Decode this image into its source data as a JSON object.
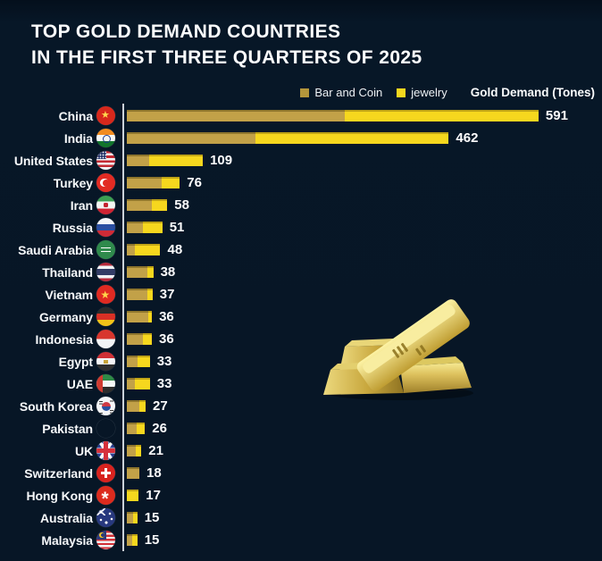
{
  "title": {
    "line1": "TOP GOLD DEMAND COUNTRIES",
    "line2": "IN THE FIRST THREE QUARTERS OF 2025"
  },
  "legend": {
    "bar_and_coin_label": "Bar and Coin",
    "jewelry_label": "jewelry",
    "axis_caption": "Gold Demand (Tones)"
  },
  "colors": {
    "background": "#071626",
    "bar_and_coin": "#c2a148",
    "jewelry": "#f6d71e",
    "axis_line": "#ccd2d9",
    "text": "#f4f6f8"
  },
  "flags": [
    "china-flag-icon",
    "india-flag-icon",
    "united-states-flag-icon",
    "turkey-flag-icon",
    "iran-flag-icon",
    "russia-flag-icon",
    "saudi-arabia-flag-icon",
    "thailand-flag-icon",
    "vietnam-flag-icon",
    "germany-flag-icon",
    "indonesia-flag-icon",
    "egypt-flag-icon",
    "uae-flag-icon",
    "south-korea-flag-icon",
    "pakistan-flag-icon",
    "uk-flag-icon",
    "switzerland-flag-icon",
    "hong-kong-flag-icon",
    "australia-flag-icon",
    "malaysia-flag-icon"
  ],
  "chart_data": {
    "type": "bar",
    "orientation": "horizontal",
    "stacked": true,
    "title": "Top Gold Demand Countries in the First Three Quarters of 2025",
    "unit_label": "Gold Demand (Tones)",
    "legend": [
      "Bar and Coin",
      "jewelry"
    ],
    "legend_position": "top-right",
    "value_labels": true,
    "grid": false,
    "xlim": [
      0,
      600
    ],
    "categories": [
      "China",
      "India",
      "United States",
      "Turkey",
      "Iran",
      "Russia",
      "Saudi Arabia",
      "Thailand",
      "Vietnam",
      "Germany",
      "Indonesia",
      "Egypt",
      "UAE",
      "South Korea",
      "Pakistan",
      "UK",
      "Switzerland",
      "Hong Kong",
      "Australia",
      "Malaysia"
    ],
    "totals": [
      591,
      462,
      109,
      76,
      58,
      51,
      48,
      38,
      37,
      36,
      36,
      33,
      33,
      27,
      26,
      21,
      18,
      17,
      15,
      15
    ],
    "series": [
      {
        "name": "Bar and Coin",
        "color": "#c2a148",
        "values": [
          313,
          185,
          32,
          50,
          36,
          23,
          11,
          30,
          29,
          31,
          23,
          15,
          11,
          18,
          14,
          13,
          18,
          0,
          9,
          7
        ]
      },
      {
        "name": "jewelry",
        "color": "#f6d71e",
        "values": [
          278,
          277,
          77,
          26,
          22,
          28,
          37,
          8,
          8,
          5,
          13,
          18,
          22,
          9,
          12,
          8,
          0,
          17,
          6,
          8
        ]
      }
    ]
  }
}
